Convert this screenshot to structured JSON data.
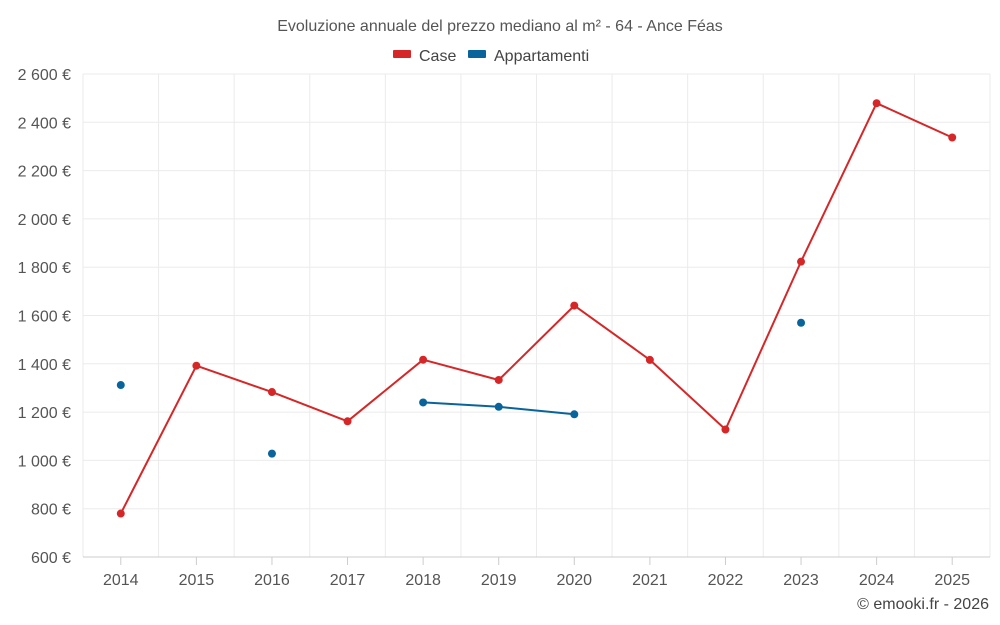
{
  "chart_data": {
    "type": "line",
    "title": "Evoluzione annuale del prezzo mediano al m² - 64 - Ance Féas",
    "categories": [
      "2014",
      "2015",
      "2016",
      "2017",
      "2018",
      "2019",
      "2020",
      "2021",
      "2022",
      "2023",
      "2024",
      "2025"
    ],
    "y_ticks": [
      600,
      800,
      1000,
      1200,
      1400,
      1600,
      1800,
      2000,
      2200,
      2400,
      2600
    ],
    "y_tick_labels": [
      "600 €",
      "800 €",
      "1 000 €",
      "1 200 €",
      "1 400 €",
      "1 600 €",
      "1 800 €",
      "2 000 €",
      "2 200 €",
      "2 400 €",
      "2 600 €"
    ],
    "ylim": [
      600,
      2600
    ],
    "grid": true,
    "legend_position": "top-center",
    "series": [
      {
        "name": "Case",
        "color": "#d62728",
        "values": [
          780,
          1392,
          1283,
          1162,
          1417,
          1333,
          1641,
          1416,
          1128,
          1823,
          2479,
          2337
        ]
      },
      {
        "name": "Appartamenti",
        "color": "#08649b",
        "values": [
          1312,
          null,
          1028,
          null,
          1240,
          1222,
          1191,
          null,
          null,
          1570,
          null,
          null
        ]
      }
    ]
  },
  "credit": "© emooki.fr - 2026"
}
